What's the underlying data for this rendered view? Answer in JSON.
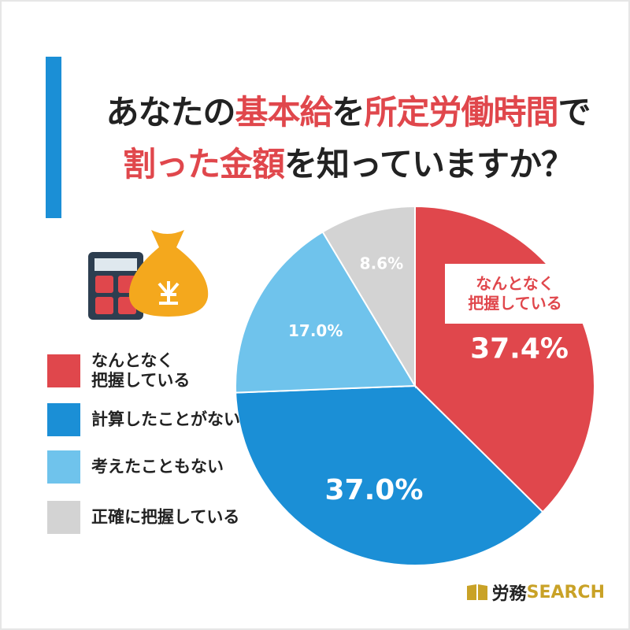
{
  "chart_data": {
    "type": "pie",
    "title_lines": [
      [
        {
          "text": "あなたの"
        },
        {
          "text": "基本給",
          "highlight": true
        },
        {
          "text": "を"
        },
        {
          "text": "所定労働時間",
          "highlight": true
        },
        {
          "text": "で"
        }
      ],
      [
        {
          "text": "割った金額",
          "highlight": true
        },
        {
          "text": "を知っていますか？"
        }
      ]
    ],
    "title_color": "#222222",
    "highlight_color": "#e0474c",
    "categories": [
      "なんとなく\n把握している",
      "計算したことがない",
      "考えたこともない",
      "正確に把握している"
    ],
    "values": [
      37.4,
      37.0,
      17.0,
      8.6
    ],
    "value_labels": [
      "37.4%",
      "37.0%",
      "17.0%",
      "8.6%"
    ],
    "colors": [
      "#e0474c",
      "#1b8fd6",
      "#6fc3ec",
      "#d3d3d3"
    ],
    "brand": {
      "name": "労務",
      "suffix": "SEARCH"
    }
  }
}
